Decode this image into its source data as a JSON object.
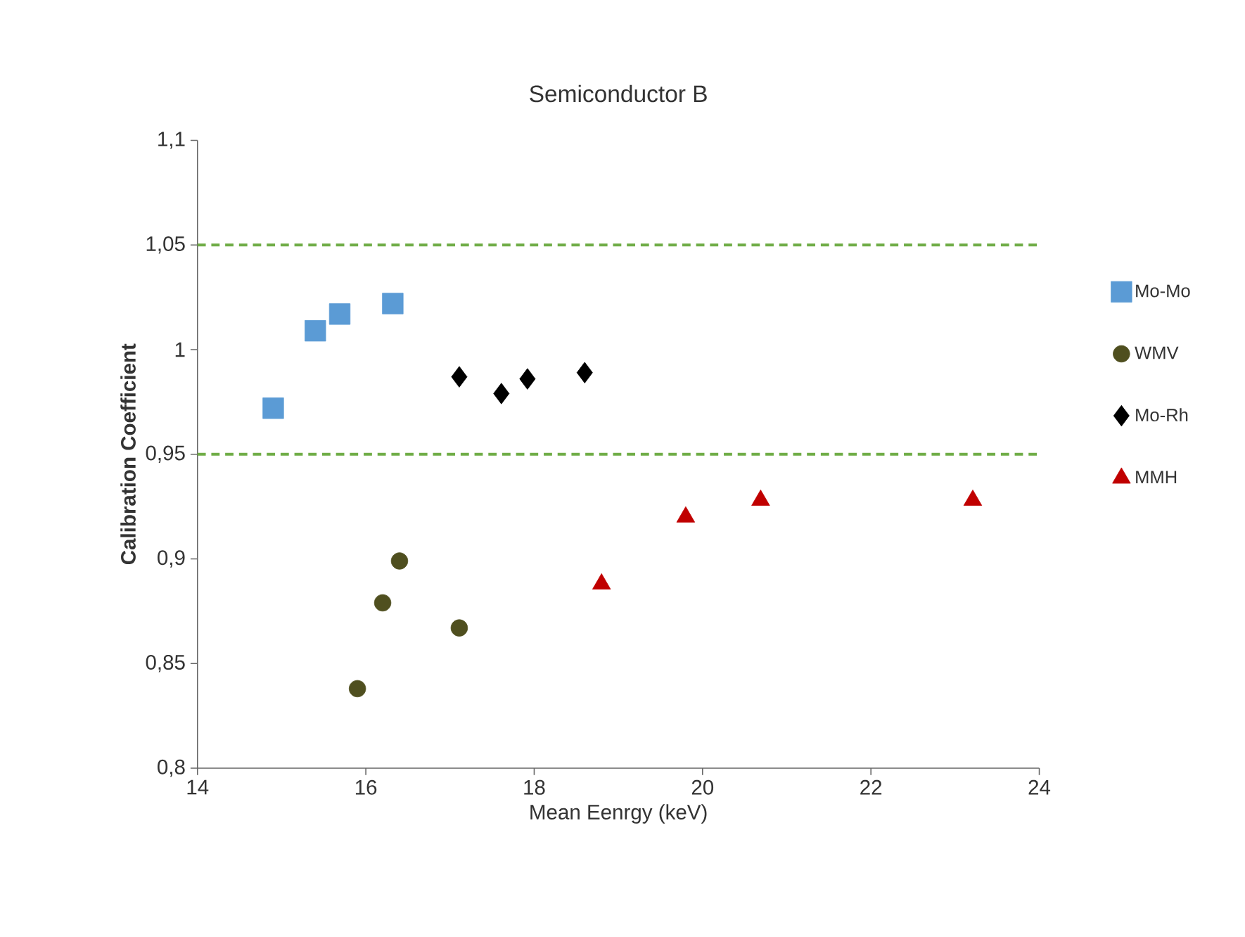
{
  "chart_data": {
    "type": "scatter",
    "title": "Semiconductor B",
    "xlabel": "Mean Eenrgy (keV)",
    "ylabel": "Calibration Coefficient",
    "xlim": [
      14,
      24
    ],
    "xticks": [
      14,
      16,
      18,
      20,
      22,
      24
    ],
    "ylim": [
      0.8,
      1.1
    ],
    "yticks": [
      {
        "value": 0.8,
        "label": "0,8"
      },
      {
        "value": 0.85,
        "label": "0,85"
      },
      {
        "value": 0.9,
        "label": "0,9"
      },
      {
        "value": 0.95,
        "label": "0,95"
      },
      {
        "value": 1,
        "label": "1"
      },
      {
        "value": 1.05,
        "label": "1,05"
      },
      {
        "value": 1.1,
        "label": "1,1"
      }
    ],
    "grid": false,
    "legend": "right",
    "ref_lines": [
      {
        "axis": "y",
        "value": 1.05,
        "color": "#70ad47",
        "line_style": "dashed"
      },
      {
        "axis": "y",
        "value": 0.95,
        "color": "#70ad47",
        "line_style": "dashed"
      }
    ],
    "series": [
      {
        "name": "Mo-Mo",
        "color": "#5b9bd5",
        "marker": "square",
        "x": [
          14.9,
          15.4,
          15.69,
          16.32
        ],
        "values": [
          0.972,
          1.009,
          1.017,
          1.022
        ]
      },
      {
        "name": "WMV",
        "color": "#4f4f1f",
        "marker": "circle",
        "x": [
          15.9,
          16.2,
          16.4,
          17.11
        ],
        "values": [
          0.838,
          0.879,
          0.899,
          0.867
        ]
      },
      {
        "name": "Mo-Rh",
        "color": "#000000",
        "marker": "diamond",
        "x": [
          17.11,
          17.61,
          17.92,
          18.6
        ],
        "values": [
          0.987,
          0.979,
          0.986,
          0.989
        ]
      },
      {
        "name": "MMH",
        "color": "#c00000",
        "marker": "triangle",
        "x": [
          18.8,
          19.8,
          20.69,
          23.21
        ],
        "values": [
          0.888,
          0.92,
          0.928,
          0.928
        ]
      }
    ]
  }
}
